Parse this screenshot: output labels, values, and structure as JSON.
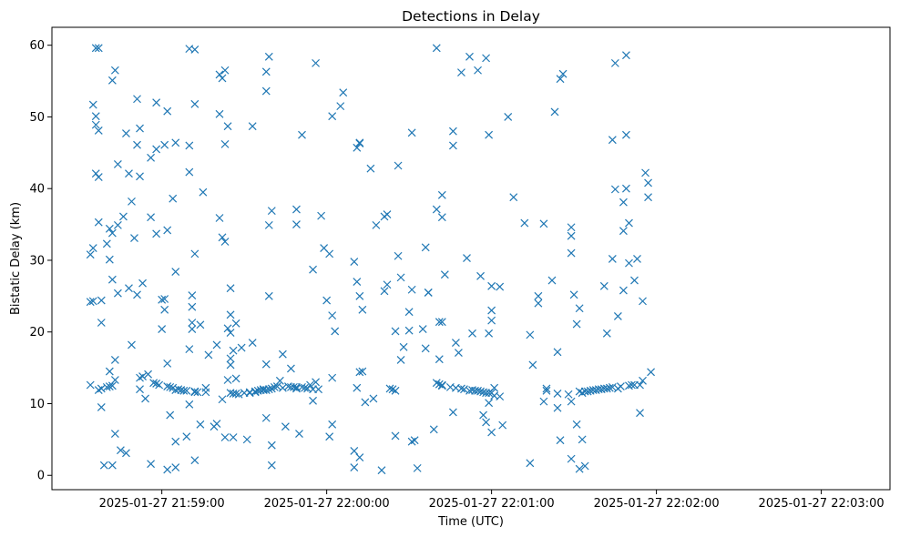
{
  "chart_data": {
    "type": "scatter",
    "title": "Detections in Delay",
    "xlabel": "Time (UTC)",
    "ylabel": "Bistatic Delay (km)",
    "marker": "x",
    "color": "#1f77b4",
    "xlim": [
      "2025-01-27 21:58:20",
      "2025-01-27 22:03:25"
    ],
    "ylim": [
      -2,
      62.5
    ],
    "xticks": [
      "2025-01-27 21:59:00",
      "2025-01-27 22:00:00",
      "2025-01-27 22:01:00",
      "2025-01-27 22:02:00",
      "2025-01-27 22:03:00"
    ],
    "yticks": [
      0,
      10,
      20,
      30,
      40,
      50,
      60
    ],
    "grid": false,
    "x_first": "2025-01-27 21:58:34",
    "x_step_seconds": 1,
    "points": [
      [
        [
          30.8,
          24.2,
          12.6
        ],
        [
          31.7,
          51.7,
          24.3
        ],
        [
          50.1,
          59.6,
          42.1,
          48.9
        ],
        [
          59.6,
          41.6,
          48.1,
          35.3,
          11.9
        ],
        [
          12.1,
          9.5,
          24.4,
          21.3
        ],
        [
          1.4
        ],
        [
          32.3,
          12.3
        ],
        [
          30.1,
          34.4,
          14.5,
          12.4
        ]
      ],
      [
        [
          12.5,
          33.8,
          55.1,
          27.3,
          1.4
        ],
        [
          56.5,
          16.1,
          5.8,
          13.3
        ],
        [
          25.4,
          34.9,
          43.4
        ],
        [
          3.5
        ],
        [
          36.1
        ],
        [
          3.1,
          47.7
        ],
        [
          42.1,
          26.1
        ],
        [
          38.2,
          18.2
        ],
        [
          33.1
        ],
        [
          46.1,
          52.5,
          25.2
        ]
      ],
      [
        [
          48.4,
          13.6,
          12,
          41.7
        ],
        [
          26.8,
          13.8
        ],
        [
          10.7
        ],
        [
          14.1
        ],
        [
          1.6,
          44.3,
          36
        ],
        [
          12.9
        ],
        [
          45.5,
          52,
          12.8,
          33.7
        ],
        [
          12.6
        ],
        [
          20.4,
          24.5
        ],
        [
          24.6,
          46.1,
          23.1
        ]
      ],
      [
        [
          12.4,
          50.8,
          0.8,
          15.6,
          34.2
        ],
        [
          8.4,
          12.3
        ],
        [
          38.6,
          12.2
        ],
        [
          46.4,
          28.4,
          1.1,
          4.7,
          11.9
        ],
        [
          12
        ],
        [
          11.9
        ],
        [
          11.8
        ],
        [
          5.4,
          11.8
        ],
        [
          59.5,
          46,
          17.6,
          42.3,
          9.9
        ],
        [
          25.1,
          21.3,
          20.4,
          23.5
        ]
      ],
      [
        [
          59.4,
          51.8,
          11.7,
          11.6,
          30.9,
          2.1
        ],
        [
          11.6
        ],
        [
          7.1,
          21
        ],
        [
          39.5
        ],
        [
          11.6,
          12.2
        ],
        [
          16.8
        ],
        [],
        [
          6.8
        ],
        [
          7.2,
          18.2
        ],
        [
          50.4,
          55.9,
          35.9
        ]
      ],
      [
        [
          55.4,
          10.6,
          33.2
        ],
        [
          32.6,
          46.2,
          56.5,
          5.3
        ],
        [
          20.5,
          48.7,
          13.3
        ],
        [
          19.9,
          11.5,
          26.1,
          16.3,
          15.4,
          22.4
        ],
        [
          11.4,
          5.3,
          17.4
        ],
        [
          21.2,
          11.4,
          13.5
        ],
        [
          11.3
        ],
        [
          17.8
        ],
        [
          11.5
        ],
        [
          5
        ]
      ],
      [
        [
          11.6,
          11.5
        ],
        [
          18.5,
          48.7
        ],
        [
          11.7,
          11.6
        ],
        [
          11.8
        ],
        [
          11.9
        ],
        [
          11.9,
          12
        ],
        [
          53.6,
          56.3,
          11.9,
          15.5,
          8
        ],
        [
          25,
          58.4,
          12,
          34.9
        ],
        [
          36.9,
          12.1,
          4.2,
          1.4
        ],
        [
          12.3
        ]
      ],
      [
        [
          12.4
        ],
        [
          13.2
        ],
        [
          12.2,
          16.9
        ],
        [
          6.8
        ],
        [
          12.4
        ],
        [
          14.9,
          12.3
        ],
        [
          12.3
        ],
        [
          35,
          37.1,
          12.3,
          12.1
        ],
        [
          5.8
        ],
        [
          12.3,
          47.5
        ]
      ],
      [
        [
          12.2
        ],
        [
          12.1
        ],
        [
          12.6
        ],
        [
          28.7,
          10.4,
          12
        ],
        [
          57.5,
          13
        ],
        [
          12
        ],
        [
          36.2
        ],
        [
          31.7
        ],
        [
          24.4
        ],
        [
          5.4,
          30.9
        ]
      ],
      [
        [
          50.1,
          13.6,
          22.3,
          7.1
        ],
        [
          20.1
        ],
        [],
        [
          51.5
        ],
        [
          53.4
        ],
        [],
        [],
        [],
        [
          1.1,
          29.8,
          3.4
        ],
        [
          27,
          45.7,
          12.2
        ]
      ],
      [
        [
          2.5,
          46.3,
          14.4,
          46.4,
          25
        ],
        [
          23.1,
          14.5
        ],
        [
          10.2
        ],
        [],
        [
          42.8
        ],
        [
          10.7
        ],
        [
          34.9
        ],
        [],
        [
          0.7
        ],
        [
          36.1,
          25.7
        ]
      ],
      [
        [
          26.6,
          36.4
        ],
        [
          12.1
        ],
        [
          12
        ],
        [
          20.1,
          5.5,
          11.8
        ],
        [
          30.6,
          43.2
        ],
        [
          27.6,
          16.1
        ],
        [
          17.9
        ],
        [],
        [
          22.8,
          20.2
        ],
        [
          4.7,
          25.9,
          47.8
        ]
      ],
      [
        [
          4.9
        ],
        [
          1
        ],
        [],
        [
          20.4
        ],
        [
          17.7,
          31.8
        ],
        [
          25.5,
          25.5
        ],
        [],
        [
          6.4
        ],
        [
          12.9,
          37.1,
          59.6
        ],
        [
          16.2,
          12.7,
          21.4
        ]
      ],
      [
        [
          12.5,
          21.4,
          39.1,
          12.6,
          36
        ],
        [
          28
        ],
        [],
        [
          12.3
        ],
        [
          8.8,
          46,
          48
        ],
        [
          18.5,
          12.2
        ],
        [
          17.1
        ],
        [
          12.1,
          56.2
        ],
        [
          12
        ],
        [
          30.3
        ]
      ],
      [
        [
          11.8,
          58.4
        ],
        [
          19.8,
          11.9
        ],
        [
          11.8
        ],
        [
          56.5,
          11.8
        ],
        [
          11.7,
          27.8
        ],
        [
          8.4,
          11.6
        ],
        [
          11.5,
          7.4,
          58.2
        ],
        [
          10.1,
          19.8,
          47.5,
          11.5
        ],
        [
          6,
          23,
          21.6,
          26.4,
          11.5
        ],
        [
          12.2,
          11.1
        ]
      ],
      [
        [],
        [
          26.3,
          11
        ],
        [
          7
        ],
        [],
        [
          50
        ],
        [],
        [
          38.8
        ],
        [],
        [],
        []
      ],
      [
        [
          35.2
        ],
        [],
        [
          1.7,
          19.6
        ],
        [
          15.4
        ],
        [],
        [
          25,
          24
        ],
        [],
        [
          10.3,
          35.1
        ],
        [
          11.8,
          12.1
        ],
        []
      ],
      [
        [
          27.2
        ],
        [
          50.7
        ],
        [
          9.4,
          17.2,
          11.4
        ],
        [
          4.9,
          55.3
        ],
        [
          56
        ],
        [],
        [
          11.3
        ],
        [
          2.3,
          34.6,
          31,
          33.4,
          10.3
        ],
        [
          25.2
        ],
        [
          21.1,
          7.1
        ]
      ],
      [
        [
          23.3,
          11.7,
          0.9
        ],
        [
          5,
          11.5
        ],
        [
          1.3,
          11.7
        ],
        [
          11.7
        ],
        [
          11.8
        ],
        [
          11.9
        ],
        [
          11.9
        ],
        [
          12
        ],
        [
          12
        ],
        [
          12.1,
          26.4
        ]
      ],
      [
        [
          19.8,
          12.1
        ],
        [
          12.2
        ],
        [
          46.8,
          30.2,
          12.3
        ],
        [
          57.5,
          39.9
        ],
        [
          12.1,
          22.2
        ],
        [
          12.4
        ],
        [
          34.1,
          25.8,
          38.1
        ],
        [
          58.6,
          47.5,
          40
        ],
        [
          35.2,
          12.5,
          29.6
        ],
        [
          12.6
        ]
      ],
      [
        [
          12.6,
          27.2
        ],
        [
          30.2
        ],
        [
          12.6,
          8.7
        ],
        [
          24.3,
          13.2
        ],
        [
          42.2
        ],
        [
          38.8,
          40.8
        ],
        [
          14.4
        ]
      ]
    ]
  }
}
